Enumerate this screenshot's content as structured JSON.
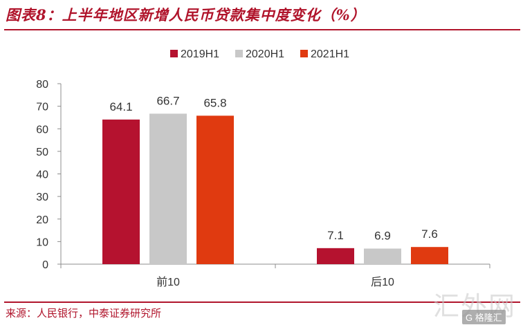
{
  "title": "图表8：上半年地区新增人民币贷款集中度变化（%）",
  "source": "来源：人民银行，中泰证券研究所",
  "watermark": "汇外网",
  "watermark_badge": "G 格隆汇",
  "colors": {
    "accent": "#b0142b",
    "s2019": "#b5122f",
    "s2020": "#c8c8c8",
    "s2021": "#e03a10"
  },
  "chart_data": {
    "type": "bar",
    "categories": [
      "前10",
      "后10"
    ],
    "series": [
      {
        "name": "2019H1",
        "values": [
          64.1,
          7.1
        ],
        "color": "#b5122f"
      },
      {
        "name": "2020H1",
        "values": [
          66.7,
          6.9
        ],
        "color": "#c8c8c8"
      },
      {
        "name": "2021H1",
        "values": [
          65.8,
          7.6
        ],
        "color": "#e03a10"
      }
    ],
    "yticks": [
      0,
      10,
      20,
      30,
      40,
      50,
      60,
      70,
      80
    ],
    "ylim": [
      0,
      80
    ],
    "grid": false,
    "legend": "top-center",
    "xlabel": "",
    "ylabel": ""
  }
}
